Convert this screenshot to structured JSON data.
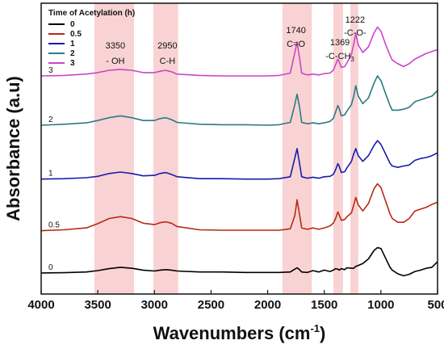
{
  "chart_data": {
    "type": "line",
    "xlabel": "Wavenumbers (cm",
    "xlabel_sup": "-1",
    "xlabel_close": ")",
    "ylabel": "Absorbance (a.u)",
    "xlim": [
      4000,
      500
    ],
    "x_reversed": true,
    "x_ticks": [
      4000,
      3500,
      3000,
      2500,
      2000,
      1500,
      1000,
      500
    ],
    "y_ticks_shown": false,
    "legend": {
      "title": "Time of Acetylation (h)",
      "placement": "top-left"
    },
    "bands": [
      {
        "center": 3350,
        "range": [
          3530,
          3180
        ],
        "label_num": "3350",
        "label_group": "- OH",
        "label_sub": ""
      },
      {
        "center": 2950,
        "range": [
          3010,
          2790
        ],
        "label_num": "2950",
        "label_group": "C-H",
        "label_sub": ""
      },
      {
        "center": 1740,
        "range": [
          1870,
          1610
        ],
        "label_num": "1740",
        "label_group": "C=O",
        "label_sub": ""
      },
      {
        "center": 1369,
        "range": [
          1420,
          1335
        ],
        "label_num": "1369",
        "label_group": "-C-CH",
        "label_sub": "3"
      },
      {
        "center": 1222,
        "range": [
          1270,
          1200
        ],
        "label_num": "1222",
        "label_group": "-C-O-",
        "label_sub": ""
      }
    ],
    "series": [
      {
        "name": "0",
        "offset_label": "0",
        "color": "#000000",
        "baseline": 0,
        "x": [
          4000,
          3800,
          3600,
          3500,
          3400,
          3300,
          3200,
          3100,
          3000,
          2950,
          2900,
          2850,
          2800,
          2600,
          2400,
          2200,
          2000,
          1900,
          1800,
          1760,
          1740,
          1720,
          1700,
          1650,
          1600,
          1550,
          1500,
          1450,
          1420,
          1400,
          1380,
          1369,
          1350,
          1320,
          1300,
          1260,
          1240,
          1222,
          1200,
          1160,
          1110,
          1060,
          1030,
          1000,
          960,
          920,
          900,
          850,
          800,
          750,
          700,
          650,
          600,
          550,
          500
        ],
        "y": [
          0.0,
          0.005,
          0.02,
          0.05,
          0.09,
          0.12,
          0.1,
          0.06,
          0.04,
          0.06,
          0.07,
          0.06,
          0.04,
          0.02,
          0.02,
          0.01,
          0.01,
          0.01,
          0.02,
          0.08,
          0.11,
          0.07,
          0.02,
          0.01,
          0.05,
          0.02,
          0.06,
          0.03,
          0.06,
          0.09,
          0.08,
          0.06,
          0.09,
          0.07,
          0.11,
          0.1,
          0.1,
          0.14,
          0.16,
          0.2,
          0.3,
          0.48,
          0.54,
          0.52,
          0.32,
          0.12,
          0.06,
          -0.02,
          -0.06,
          -0.03,
          0.03,
          0.06,
          0.1,
          0.12,
          0.24
        ]
      },
      {
        "name": "0.5",
        "offset_label": "0.5",
        "color": "#b52a14",
        "baseline": 0.9,
        "x": [
          4000,
          3800,
          3600,
          3500,
          3400,
          3300,
          3200,
          3100,
          3000,
          2950,
          2900,
          2850,
          2800,
          2600,
          2400,
          2200,
          2000,
          1900,
          1800,
          1760,
          1740,
          1720,
          1700,
          1650,
          1600,
          1550,
          1500,
          1450,
          1420,
          1400,
          1380,
          1369,
          1350,
          1320,
          1300,
          1260,
          1240,
          1222,
          1200,
          1160,
          1110,
          1060,
          1030,
          1000,
          960,
          920,
          900,
          850,
          800,
          750,
          700,
          650,
          600,
          550,
          500
        ],
        "y": [
          0.0,
          0.02,
          0.06,
          0.15,
          0.26,
          0.3,
          0.26,
          0.16,
          0.13,
          0.17,
          0.19,
          0.16,
          0.09,
          0.02,
          0.01,
          0.01,
          0.01,
          0.01,
          0.04,
          0.32,
          0.66,
          0.36,
          0.06,
          0.03,
          0.06,
          0.03,
          0.06,
          0.1,
          0.16,
          0.26,
          0.4,
          0.34,
          0.22,
          0.24,
          0.3,
          0.38,
          0.55,
          0.71,
          0.55,
          0.42,
          0.58,
          0.9,
          1.0,
          0.92,
          0.64,
          0.36,
          0.26,
          0.18,
          0.18,
          0.26,
          0.42,
          0.46,
          0.5,
          0.56,
          0.61
        ]
      },
      {
        "name": "1",
        "offset_label": "1",
        "color": "#1a1ab0",
        "baseline": 2.0,
        "x": [
          4000,
          3800,
          3600,
          3500,
          3400,
          3300,
          3200,
          3100,
          3000,
          2950,
          2900,
          2850,
          2800,
          2600,
          2400,
          2200,
          2000,
          1900,
          1800,
          1760,
          1740,
          1720,
          1700,
          1650,
          1600,
          1550,
          1500,
          1450,
          1420,
          1400,
          1380,
          1369,
          1350,
          1320,
          1300,
          1260,
          1240,
          1222,
          1200,
          1160,
          1110,
          1060,
          1030,
          1000,
          960,
          920,
          900,
          850,
          800,
          750,
          700,
          650,
          600,
          550,
          500
        ],
        "y": [
          0.0,
          0.01,
          0.03,
          0.06,
          0.12,
          0.15,
          0.12,
          0.07,
          0.08,
          0.12,
          0.14,
          0.1,
          0.05,
          0.01,
          0.01,
          0.0,
          0.0,
          0.01,
          0.05,
          0.45,
          0.65,
          0.35,
          0.05,
          0.02,
          0.04,
          0.02,
          0.05,
          0.06,
          0.1,
          0.2,
          0.33,
          0.28,
          0.14,
          0.16,
          0.24,
          0.38,
          0.54,
          0.65,
          0.5,
          0.38,
          0.5,
          0.72,
          0.82,
          0.74,
          0.54,
          0.34,
          0.28,
          0.25,
          0.28,
          0.3,
          0.4,
          0.44,
          0.46,
          0.5,
          0.56
        ]
      },
      {
        "name": "2",
        "offset_label": "2",
        "color": "#2a7a84",
        "baseline": 3.15,
        "x": [
          4000,
          3800,
          3600,
          3500,
          3400,
          3300,
          3200,
          3100,
          3000,
          2950,
          2900,
          2850,
          2800,
          2600,
          2400,
          2200,
          2000,
          1900,
          1800,
          1760,
          1740,
          1720,
          1700,
          1650,
          1600,
          1550,
          1500,
          1450,
          1420,
          1400,
          1380,
          1369,
          1350,
          1320,
          1300,
          1260,
          1240,
          1222,
          1200,
          1160,
          1110,
          1060,
          1030,
          1000,
          960,
          920,
          900,
          850,
          800,
          750,
          700,
          650,
          600,
          550,
          500
        ],
        "y": [
          0.0,
          0.02,
          0.05,
          0.1,
          0.16,
          0.2,
          0.16,
          0.1,
          0.1,
          0.14,
          0.16,
          0.12,
          0.06,
          0.02,
          0.01,
          0.01,
          0.0,
          0.01,
          0.06,
          0.44,
          0.66,
          0.4,
          0.06,
          0.03,
          0.05,
          0.03,
          0.05,
          0.08,
          0.14,
          0.28,
          0.42,
          0.36,
          0.2,
          0.22,
          0.3,
          0.44,
          0.62,
          0.84,
          0.62,
          0.46,
          0.58,
          0.9,
          1.05,
          0.95,
          0.68,
          0.42,
          0.32,
          0.32,
          0.34,
          0.38,
          0.5,
          0.54,
          0.58,
          0.62,
          0.74
        ]
      },
      {
        "name": "3",
        "offset_label": "3",
        "color": "#cc44cc",
        "baseline": 4.2,
        "x": [
          4000,
          3800,
          3600,
          3500,
          3400,
          3300,
          3200,
          3100,
          3000,
          2950,
          2900,
          2850,
          2800,
          2600,
          2400,
          2200,
          2000,
          1900,
          1800,
          1760,
          1740,
          1720,
          1700,
          1650,
          1600,
          1550,
          1500,
          1450,
          1420,
          1400,
          1380,
          1369,
          1350,
          1320,
          1300,
          1260,
          1240,
          1222,
          1200,
          1160,
          1110,
          1060,
          1030,
          1000,
          960,
          920,
          900,
          850,
          800,
          750,
          700,
          650,
          600,
          550,
          500
        ],
        "y": [
          0.0,
          0.01,
          0.04,
          0.07,
          0.12,
          0.14,
          0.12,
          0.07,
          0.07,
          0.1,
          0.12,
          0.09,
          0.04,
          0.01,
          0.0,
          0.0,
          0.0,
          0.01,
          0.06,
          0.5,
          0.72,
          0.4,
          0.06,
          0.02,
          0.04,
          0.02,
          0.05,
          0.06,
          0.12,
          0.24,
          0.36,
          0.3,
          0.18,
          0.2,
          0.28,
          0.46,
          0.68,
          0.9,
          0.66,
          0.5,
          0.62,
          0.92,
          1.04,
          0.95,
          0.68,
          0.44,
          0.34,
          0.26,
          0.2,
          0.26,
          0.36,
          0.42,
          0.48,
          0.52,
          0.56
        ]
      }
    ]
  }
}
